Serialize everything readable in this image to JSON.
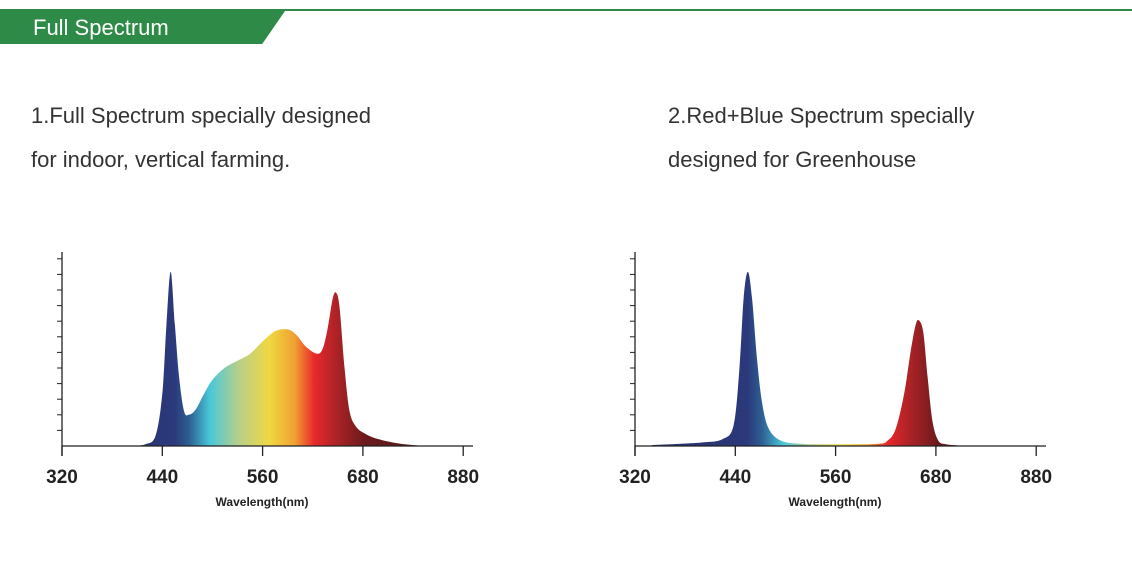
{
  "header": {
    "title": "Full Spectrum",
    "color": "#2e8b47"
  },
  "descriptions": [
    {
      "line1": "1.Full Spectrum specially designed",
      "line2": "for indoor, vertical farming."
    },
    {
      "line1": "2.Red+Blue Spectrum specially",
      "line2": "designed for Greenhouse"
    }
  ],
  "chart_data": [
    {
      "type": "area",
      "title": "Full Spectrum",
      "xlabel": "Wavelength(nm)",
      "ylabel": "",
      "xticks": [
        320,
        440,
        560,
        680,
        880
      ],
      "ylim": [
        0,
        1.08
      ],
      "x": [
        400,
        420,
        432,
        440,
        445,
        450,
        455,
        460,
        466,
        472,
        480,
        490,
        500,
        515,
        530,
        545,
        560,
        575,
        590,
        600,
        612,
        625,
        632,
        638,
        644,
        648,
        652,
        658,
        664,
        672,
        685,
        710,
        750,
        790,
        815
      ],
      "y": [
        0,
        0.01,
        0.06,
        0.3,
        0.7,
        1.0,
        0.7,
        0.4,
        0.2,
        0.18,
        0.21,
        0.3,
        0.38,
        0.45,
        0.49,
        0.53,
        0.6,
        0.66,
        0.67,
        0.64,
        0.57,
        0.53,
        0.56,
        0.68,
        0.85,
        0.88,
        0.8,
        0.45,
        0.2,
        0.11,
        0.07,
        0.04,
        0.015,
        0.003,
        0
      ]
    },
    {
      "type": "area",
      "title": "Red+Blue Spectrum",
      "xlabel": "Wavelength(nm)",
      "ylabel": "",
      "xticks": [
        320,
        440,
        560,
        680,
        880
      ],
      "ylim": [
        0,
        1.08
      ],
      "x": [
        340,
        400,
        425,
        438,
        445,
        450,
        455,
        460,
        466,
        472,
        480,
        495,
        520,
        560,
        610,
        622,
        632,
        642,
        650,
        656,
        660,
        665,
        670,
        676,
        685,
        700,
        725,
        745
      ],
      "y": [
        0.005,
        0.02,
        0.04,
        0.12,
        0.45,
        0.85,
        1.0,
        0.85,
        0.5,
        0.25,
        0.1,
        0.03,
        0.012,
        0.01,
        0.012,
        0.03,
        0.1,
        0.3,
        0.55,
        0.7,
        0.72,
        0.65,
        0.4,
        0.14,
        0.03,
        0.01,
        0.003,
        0
      ]
    }
  ]
}
